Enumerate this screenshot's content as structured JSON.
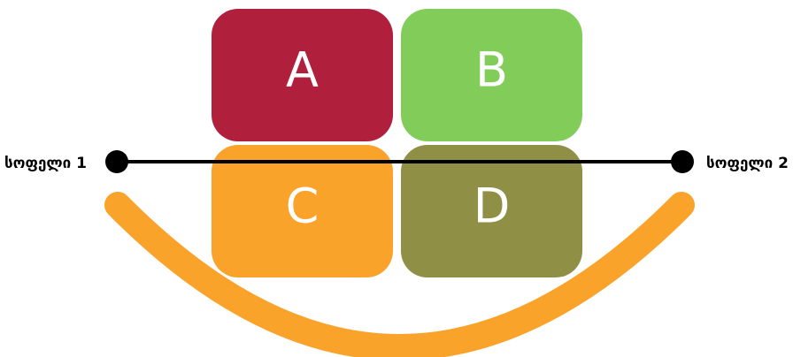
{
  "nodes": [
    {
      "label": "A",
      "color": "#b01f3c"
    },
    {
      "label": "B",
      "color": "#82cd5a"
    },
    {
      "label": "C",
      "color": "#f9a32b"
    },
    {
      "label": "D",
      "color": "#8f8f45"
    }
  ],
  "villages": [
    {
      "label": "სოფელი 1"
    },
    {
      "label": "სოფელი 2"
    }
  ]
}
